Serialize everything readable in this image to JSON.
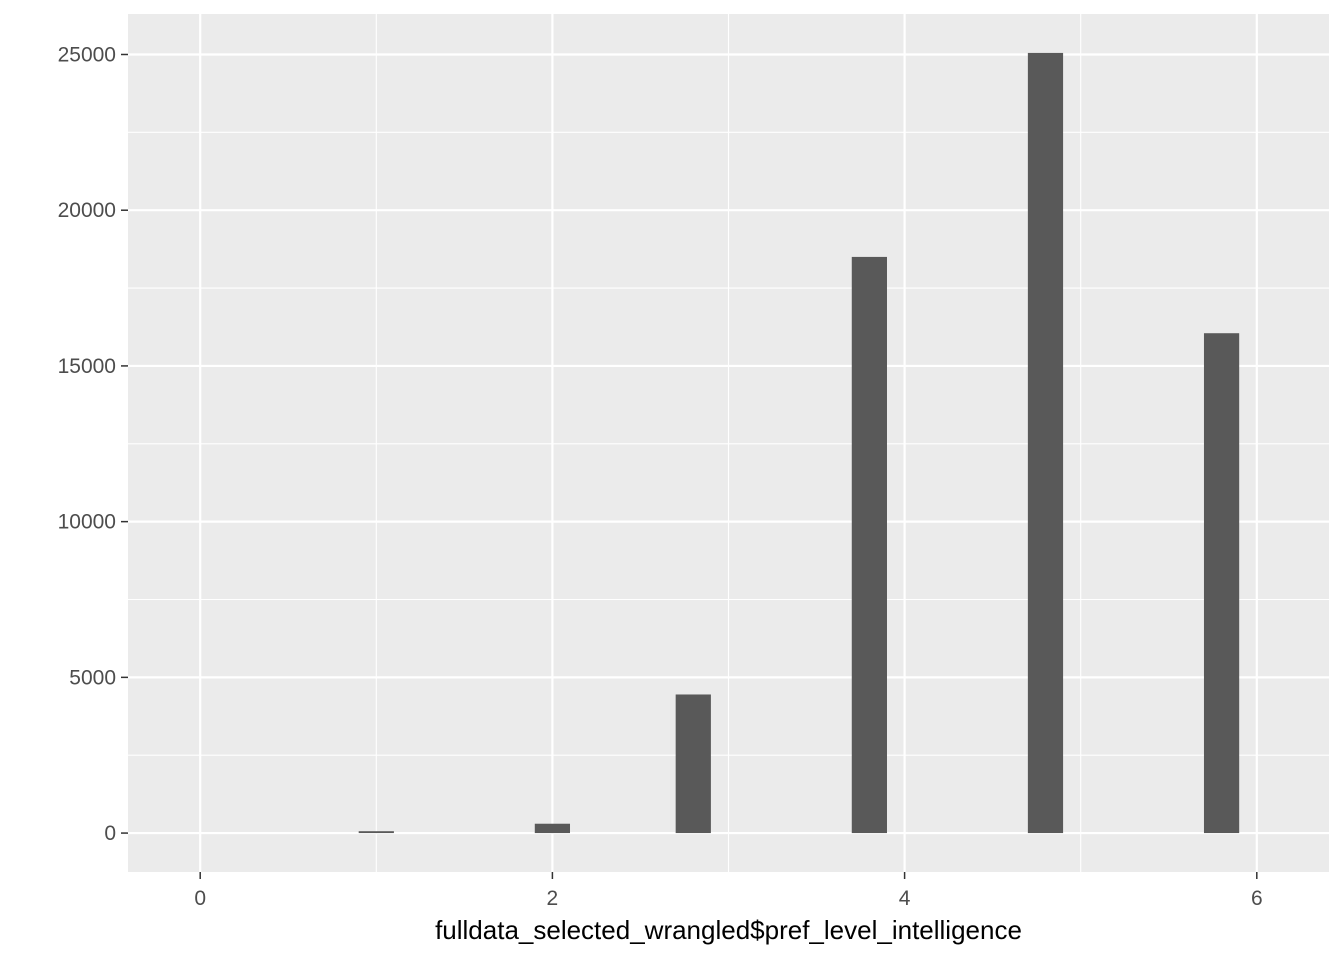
{
  "chart_data": {
    "type": "bar",
    "title": "",
    "xlabel": "fulldata_selected_wrangled$pref_level_intelligence",
    "ylabel": "",
    "bin_width": 0.2,
    "bars": [
      {
        "x": 1.0,
        "value": 60
      },
      {
        "x": 2.0,
        "value": 300
      },
      {
        "x": 2.8,
        "value": 4450
      },
      {
        "x": 3.8,
        "value": 18500
      },
      {
        "x": 4.8,
        "value": 25050
      },
      {
        "x": 5.8,
        "value": 16050
      }
    ],
    "xlim": [
      -0.41,
      6.41
    ],
    "ylim": [
      -1250,
      26300
    ],
    "x_ticks": [
      "0",
      "2",
      "4",
      "6"
    ],
    "y_ticks": [
      "0",
      "5000",
      "10000",
      "15000",
      "20000",
      "25000"
    ],
    "grid": true,
    "legend": "none",
    "colors": {
      "panel": "#EBEBEB",
      "grid": "#FFFFFF",
      "bar": "#595959",
      "tick_text": "#4D4D4D",
      "axis_title": "#000000"
    }
  }
}
